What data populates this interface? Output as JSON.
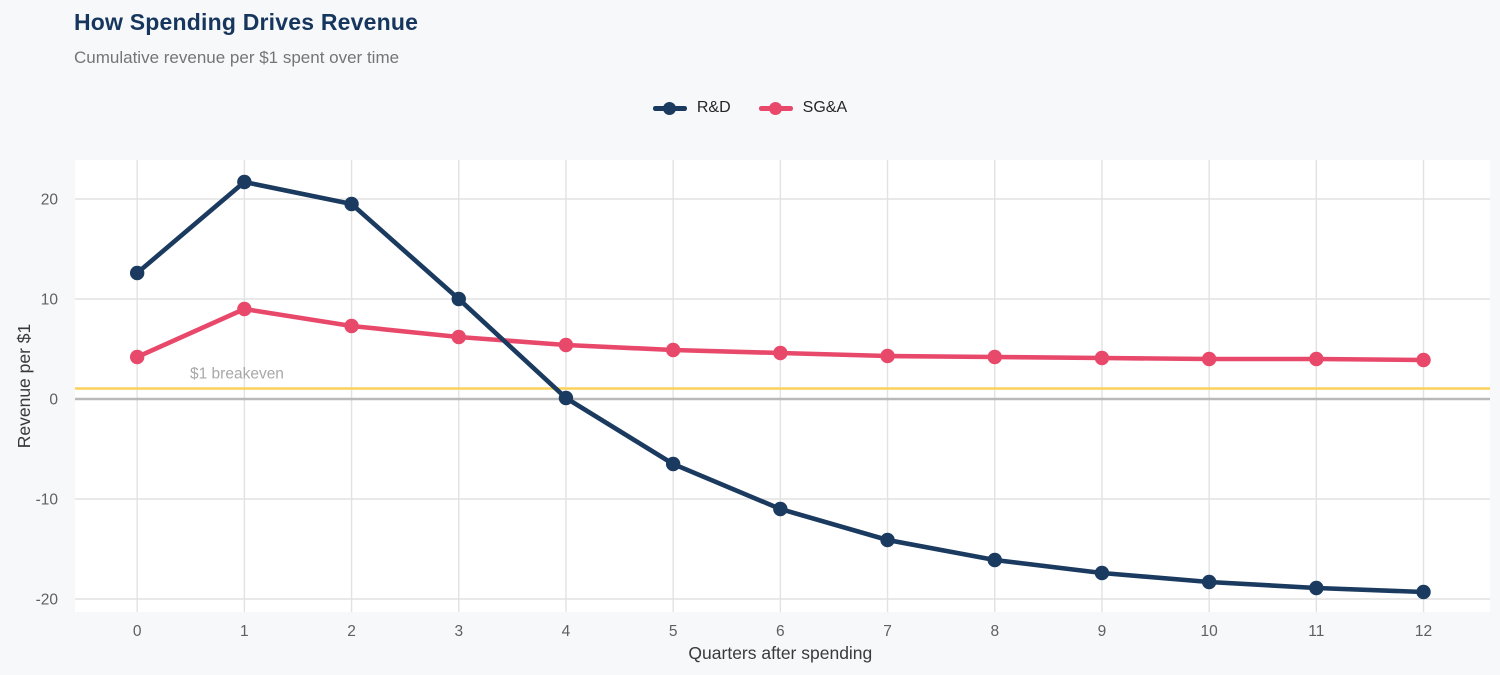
{
  "header": {
    "title": "How Spending Drives Revenue",
    "subtitle": "Cumulative revenue per $1 spent over time"
  },
  "chart_data": {
    "type": "line",
    "title": "How Spending Drives Revenue",
    "subtitle": "Cumulative revenue per $1 spent over time",
    "xlabel": "Quarters after spending",
    "ylabel": "Revenue per $1",
    "x": [
      0,
      1,
      2,
      3,
      4,
      5,
      6,
      7,
      8,
      9,
      10,
      11,
      12
    ],
    "xticks": [
      0,
      1,
      2,
      3,
      4,
      5,
      6,
      7,
      8,
      9,
      10,
      11,
      12
    ],
    "yticks": [
      -20,
      -10,
      0,
      10,
      20
    ],
    "xlim": [
      -0.58,
      12.62
    ],
    "ylim": [
      -21.3,
      23.9
    ],
    "grid": true,
    "legend_position": "top-center",
    "series": [
      {
        "name": "R&D",
        "color": "#1b3a5f",
        "values": [
          12.6,
          21.7,
          19.5,
          10.0,
          0.1,
          -6.5,
          -11.0,
          -14.1,
          -16.1,
          -17.4,
          -18.3,
          -18.9,
          -19.3
        ]
      },
      {
        "name": "SG&A",
        "color": "#e8496b",
        "values": [
          4.2,
          9.0,
          7.3,
          6.2,
          5.4,
          4.9,
          4.6,
          4.3,
          4.2,
          4.1,
          4.0,
          4.0,
          3.9
        ]
      }
    ],
    "annotations": [
      {
        "type": "hline",
        "y": 1.05,
        "label": "$1 breakeven",
        "color": "#fbd15c",
        "label_color": "#a8a8a8"
      },
      {
        "type": "hline",
        "y": 0,
        "label": "",
        "color": "#b9b9b9"
      }
    ]
  }
}
